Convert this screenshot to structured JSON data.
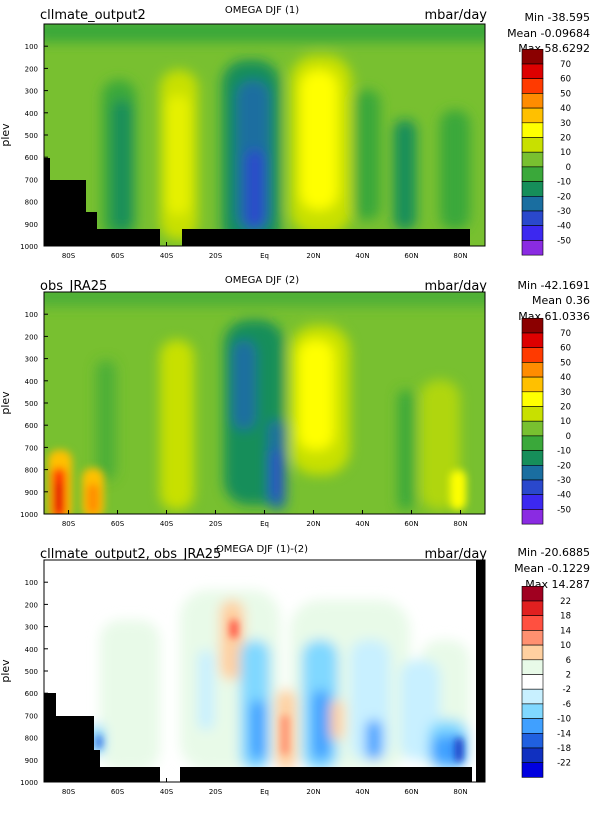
{
  "chart_data": [
    {
      "type": "heatmap",
      "title": "OMEGA DJF (1)",
      "left_label": "cllmate_output2",
      "units": "mbar/day",
      "stats": {
        "min": "Min -38.595",
        "mean": "Mean -0.09684",
        "max": "Max 58.6292"
      },
      "ylabel": "plev",
      "yticks": [
        "100",
        "200",
        "300",
        "400",
        "500",
        "600",
        "700",
        "800",
        "900",
        "1000"
      ],
      "xticks": [
        "80S",
        "60S",
        "40S",
        "20S",
        "Eq",
        "20N",
        "40N",
        "60N",
        "80N"
      ],
      "colorbar_levels": [
        "70",
        "60",
        "50",
        "40",
        "30",
        "20",
        "10",
        "0",
        "-10",
        "-20",
        "-30",
        "-40",
        "-50"
      ],
      "colorbar_colors": [
        "#8b0000",
        "#dd0000",
        "#ff3a00",
        "#ff8c00",
        "#ffc000",
        "#ffff00",
        "#c8e000",
        "#78c030",
        "#3aa83a",
        "#168e5a",
        "#1a6ea0",
        "#2a48cc",
        "#3c28f0",
        "#8a2be2"
      ],
      "xlim": [
        -90,
        90
      ],
      "ylim": [
        1000,
        0
      ],
      "features": [
        {
          "kind": "background",
          "level": "0 to 10"
        },
        {
          "kind": "band",
          "x": [
            -45,
            -28
          ],
          "y": [
            150,
            950
          ],
          "level": "10 to 20"
        },
        {
          "kind": "band",
          "x": [
            -68,
            -58
          ],
          "y": [
            250,
            850
          ],
          "level": "-10 to 0"
        },
        {
          "kind": "band",
          "x": [
            -5,
            12
          ],
          "y": [
            180,
            950
          ],
          "level": "-20 to -10"
        },
        {
          "kind": "band",
          "x": [
            -2,
            8
          ],
          "y": [
            300,
            880
          ],
          "level": "-30 to -20"
        },
        {
          "kind": "band",
          "x": [
            18,
            32
          ],
          "y": [
            220,
            800
          ],
          "level": "20 to 30"
        },
        {
          "kind": "band",
          "x": [
            55,
            63
          ],
          "y": [
            350,
            900
          ],
          "level": "-10 to 0"
        }
      ]
    },
    {
      "type": "heatmap",
      "title": "OMEGA DJF (2)",
      "left_label": "obs_JRA25",
      "units": "mbar/day",
      "stats": {
        "min": "Min -42.1691",
        "mean": "Mean 0.36",
        "max": "Max 61.0336"
      },
      "ylabel": "plev",
      "yticks": [
        "100",
        "200",
        "300",
        "400",
        "500",
        "600",
        "700",
        "800",
        "900",
        "1000"
      ],
      "xticks": [
        "80S",
        "60S",
        "40S",
        "20S",
        "Eq",
        "20N",
        "40N",
        "60N",
        "80N"
      ],
      "colorbar_levels": [
        "70",
        "60",
        "50",
        "40",
        "30",
        "20",
        "10",
        "0",
        "-10",
        "-20",
        "-30",
        "-40",
        "-50"
      ],
      "colorbar_colors": [
        "#8b0000",
        "#dd0000",
        "#ff3a00",
        "#ff8c00",
        "#ffc000",
        "#ffff00",
        "#c8e000",
        "#78c030",
        "#3aa83a",
        "#168e5a",
        "#1a6ea0",
        "#2a48cc",
        "#3c28f0",
        "#8a2be2"
      ],
      "xlim": [
        -90,
        90
      ],
      "ylim": [
        1000,
        0
      ],
      "features": [
        {
          "kind": "background",
          "level": "0 to 10"
        },
        {
          "kind": "band",
          "x": [
            -85,
            -80
          ],
          "y": [
            750,
            1000
          ],
          "level": "40 to 60"
        },
        {
          "kind": "band",
          "x": [
            -74,
            -67
          ],
          "y": [
            800,
            1000
          ],
          "level": "20 to 40"
        },
        {
          "kind": "band",
          "x": [
            -45,
            -28
          ],
          "y": [
            250,
            900
          ],
          "level": "10 to 20"
        },
        {
          "kind": "band",
          "x": [
            -10,
            12
          ],
          "y": [
            150,
            900
          ],
          "level": "-20 to -10"
        },
        {
          "kind": "band",
          "x": [
            20,
            32
          ],
          "y": [
            200,
            600
          ],
          "level": "20 to 30"
        },
        {
          "kind": "band",
          "x": [
            50,
            60
          ],
          "y": [
            400,
            850
          ],
          "level": "-10 to 0"
        }
      ]
    },
    {
      "type": "heatmap",
      "title": "OMEGA DJF (1)-(2)",
      "left_label": "cllmate_output2, obs_JRA25",
      "units": "mbar/day",
      "stats": {
        "min": "Min -20.6885",
        "mean": "Mean -0.1229",
        "max": "Max 14.287"
      },
      "ylabel": "plev",
      "yticks": [
        "100",
        "200",
        "300",
        "400",
        "500",
        "600",
        "700",
        "800",
        "900",
        "1000"
      ],
      "xticks": [
        "80S",
        "60S",
        "40S",
        "20S",
        "Eq",
        "20N",
        "40N",
        "60N",
        "80N"
      ],
      "colorbar_levels": [
        "22",
        "18",
        "14",
        "10",
        "6",
        "2",
        "-2",
        "-6",
        "-10",
        "-14",
        "-18",
        "-22"
      ],
      "colorbar_colors": [
        "#a00020",
        "#e02020",
        "#ff5040",
        "#ff9070",
        "#ffd0a0",
        "#e8fae8",
        "#ffffff",
        "#c8f0ff",
        "#80d8ff",
        "#40a0ff",
        "#2060e0",
        "#1030c0",
        "#0000e0"
      ],
      "xlim": [
        -90,
        90
      ],
      "ylim": [
        1000,
        0
      ],
      "features": [
        {
          "kind": "background",
          "level": "-2 to 2"
        },
        {
          "kind": "band",
          "x": [
            -12,
            -5
          ],
          "y": [
            200,
            500
          ],
          "level": "6 to 10"
        },
        {
          "kind": "band",
          "x": [
            5,
            10
          ],
          "y": [
            600,
            900
          ],
          "level": "6 to 14"
        },
        {
          "kind": "band",
          "x": [
            -5,
            2
          ],
          "y": [
            400,
            950
          ],
          "level": "-10 to -6"
        },
        {
          "kind": "band",
          "x": [
            12,
            18
          ],
          "y": [
            400,
            900
          ],
          "level": "-10 to -6"
        },
        {
          "kind": "band",
          "x": [
            26,
            30
          ],
          "y": [
            650,
            800
          ],
          "level": "6 to 10"
        },
        {
          "kind": "band",
          "x": [
            74,
            84
          ],
          "y": [
            750,
            950
          ],
          "level": "-14 to -10"
        }
      ]
    }
  ]
}
